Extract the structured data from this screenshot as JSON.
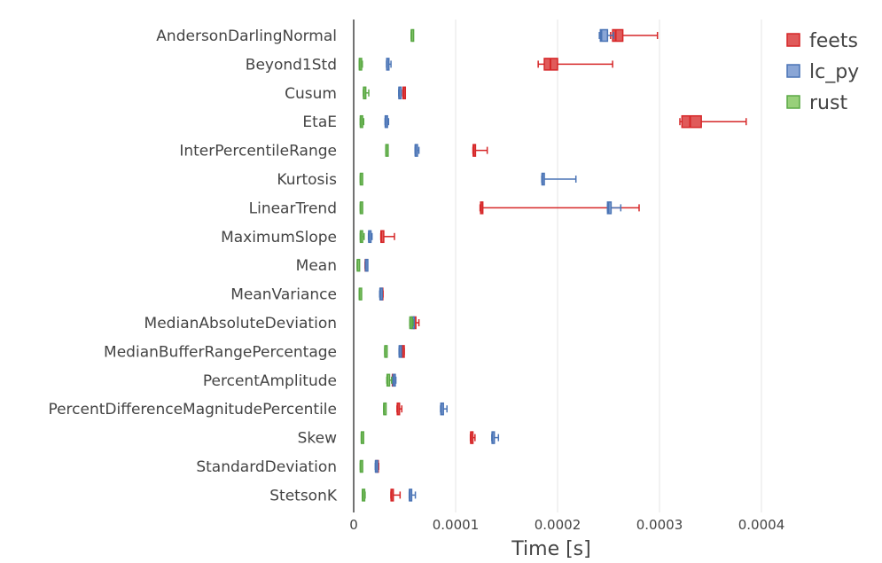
{
  "chart_data": {
    "type": "box",
    "orientation": "horizontal",
    "xlabel": "Time [s]",
    "ylabel": "",
    "xlim": [
      0,
      0.00048
    ],
    "x_ticks": [
      {
        "value": 0,
        "label": "0"
      },
      {
        "value": 0.0001,
        "label": "0.0001"
      },
      {
        "value": 0.0002,
        "label": "0.0002"
      },
      {
        "value": 0.0003,
        "label": "0.0003"
      },
      {
        "value": 0.0004,
        "label": "0.0004"
      }
    ],
    "grid": true,
    "legend_position": "top-right",
    "categories": [
      "AndersonDarlingNormal",
      "Beyond1Std",
      "Cusum",
      "EtaE",
      "InterPercentileRange",
      "Kurtosis",
      "LinearTrend",
      "MaximumSlope",
      "Mean",
      "MeanVariance",
      "MedianAbsoluteDeviation",
      "MedianBufferRangePercentage",
      "PercentAmplitude",
      "PercentDifferenceMagnitudePercentile",
      "Skew",
      "StandardDeviation",
      "StetsonK"
    ],
    "series": [
      {
        "name": "feets",
        "color": "#d62728",
        "fill": "#e05a5a",
        "boxes": [
          {
            "min": 0.000252,
            "q1": 0.000254,
            "median": 0.000257,
            "q3": 0.000264,
            "max": 0.000298
          },
          {
            "min": 0.000181,
            "q1": 0.000187,
            "median": 0.000193,
            "q3": 0.0002,
            "max": 0.000254
          },
          {
            "min": 4.82e-05,
            "q1": 4.85e-05,
            "median": 4.88e-05,
            "q3": 4.98e-05,
            "max": 5e-05
          },
          {
            "min": 0.00032,
            "q1": 0.000322,
            "median": 0.00033,
            "q3": 0.000341,
            "max": 0.000385
          },
          {
            "min": 0.000117,
            "q1": 0.0001173,
            "median": 0.0001175,
            "q3": 0.000119,
            "max": 0.000131
          },
          null,
          {
            "min": 0.000124,
            "q1": 0.0001245,
            "median": 0.0001248,
            "q3": 0.0001252,
            "max": 0.00028
          },
          {
            "min": 2.66e-05,
            "q1": 2.68e-05,
            "median": 2.7e-05,
            "q3": 2.95e-05,
            "max": 4e-05
          },
          {
            "min": 1.12e-05,
            "q1": 1.14e-05,
            "median": 1.16e-05,
            "q3": 1.22e-05,
            "max": 1.28e-05
          },
          {
            "min": 2.62e-05,
            "q1": 2.64e-05,
            "median": 2.66e-05,
            "q3": 2.8e-05,
            "max": 2.88e-05
          },
          {
            "min": 5.85e-05,
            "q1": 5.88e-05,
            "median": 5.9e-05,
            "q3": 6.05e-05,
            "max": 6.4e-05
          },
          {
            "min": 4.72e-05,
            "q1": 4.74e-05,
            "median": 4.76e-05,
            "q3": 4.86e-05,
            "max": 4.96e-05
          },
          {
            "min": 3.78e-05,
            "q1": 3.8e-05,
            "median": 3.82e-05,
            "q3": 3.9e-05,
            "max": 3.98e-05
          },
          {
            "min": 4.25e-05,
            "q1": 4.28e-05,
            "median": 4.3e-05,
            "q3": 4.48e-05,
            "max": 4.72e-05
          },
          {
            "min": 0.0001145,
            "q1": 0.0001148,
            "median": 0.000115,
            "q3": 0.000116,
            "max": 0.000119
          },
          {
            "min": 2.18e-05,
            "q1": 2.2e-05,
            "median": 2.22e-05,
            "q3": 2.32e-05,
            "max": 2.45e-05
          },
          {
            "min": 3.65e-05,
            "q1": 3.67e-05,
            "median": 3.69e-05,
            "q3": 3.74e-05,
            "max": 4.55e-05
          }
        ]
      },
      {
        "name": "lc_py",
        "color": "#4a74b5",
        "fill": "#8aa6d6",
        "boxes": [
          {
            "min": 0.000241,
            "q1": 0.000242,
            "median": 0.000243,
            "q3": 0.000249,
            "max": 0.000255
          },
          {
            "min": 3.22e-05,
            "q1": 3.24e-05,
            "median": 3.26e-05,
            "q3": 3.34e-05,
            "max": 3.66e-05
          },
          {
            "min": 4.42e-05,
            "q1": 4.44e-05,
            "median": 4.46e-05,
            "q3": 4.58e-05,
            "max": 4.65e-05
          },
          {
            "min": 3.08e-05,
            "q1": 3.1e-05,
            "median": 3.12e-05,
            "q3": 3.22e-05,
            "max": 3.42e-05
          },
          {
            "min": 6.02e-05,
            "q1": 6.04e-05,
            "median": 6.06e-05,
            "q3": 6.18e-05,
            "max": 6.4e-05
          },
          {
            "min": 0.0001845,
            "q1": 0.0001848,
            "median": 0.000185,
            "q3": 0.000187,
            "max": 0.000218
          },
          {
            "min": 0.000249,
            "q1": 0.000249,
            "median": 0.00025,
            "q3": 0.0002525,
            "max": 0.000262
          },
          {
            "min": 1.45e-05,
            "q1": 1.48e-05,
            "median": 1.5e-05,
            "q3": 1.6e-05,
            "max": 1.8e-05
          },
          {
            "min": 1.15e-05,
            "q1": 1.17e-05,
            "median": 1.19e-05,
            "q3": 1.23e-05,
            "max": 1.26e-05
          },
          {
            "min": 2.55e-05,
            "q1": 2.58e-05,
            "median": 2.6e-05,
            "q3": 2.68e-05,
            "max": 2.76e-05
          },
          {
            "min": 5.68e-05,
            "q1": 5.72e-05,
            "median": 5.75e-05,
            "q3": 5.8e-05,
            "max": 5.85e-05
          },
          {
            "min": 4.45e-05,
            "q1": 4.47e-05,
            "median": 4.49e-05,
            "q3": 4.55e-05,
            "max": 4.6e-05
          },
          {
            "min": 3.82e-05,
            "q1": 3.86e-05,
            "median": 3.9e-05,
            "q3": 4.08e-05,
            "max": 4.14e-05
          },
          {
            "min": 8.52e-05,
            "q1": 8.55e-05,
            "median": 8.58e-05,
            "q3": 8.8e-05,
            "max": 9.15e-05
          },
          {
            "min": 0.0001355,
            "q1": 0.0001358,
            "median": 0.000136,
            "q3": 0.000138,
            "max": 0.000142
          },
          {
            "min": 2.12e-05,
            "q1": 2.14e-05,
            "median": 2.16e-05,
            "q3": 2.26e-05,
            "max": 2.36e-05
          },
          {
            "min": 5.45e-05,
            "q1": 5.47e-05,
            "median": 5.49e-05,
            "q3": 5.58e-05,
            "max": 6.05e-05
          }
        ]
      },
      {
        "name": "rust",
        "color": "#5aa845",
        "fill": "#98d07a",
        "boxes": [
          {
            "min": 5.65e-05,
            "q1": 5.66e-05,
            "median": 5.67e-05,
            "q3": 5.72e-05,
            "max": 5.75e-05
          },
          {
            "min": 5.5e-06,
            "q1": 5.6e-06,
            "median": 5.8e-06,
            "q3": 6.8e-06,
            "max": 8.5e-06
          },
          {
            "min": 9.5e-06,
            "q1": 9.7e-06,
            "median": 9.9e-06,
            "q3": 1.1e-05,
            "max": 1.48e-05
          },
          {
            "min": 6.5e-06,
            "q1": 6.6e-06,
            "median": 6.8e-06,
            "q3": 7.6e-06,
            "max": 9.8e-06
          },
          {
            "min": 3.15e-05,
            "q1": 3.16e-05,
            "median": 3.18e-05,
            "q3": 3.26e-05,
            "max": 3.35e-05
          },
          {
            "min": 6.5e-06,
            "q1": 6.6e-06,
            "median": 6.7e-06,
            "q3": 7.3e-06,
            "max": 8e-06
          },
          {
            "min": 6.5e-06,
            "q1": 6.6e-06,
            "median": 6.7e-06,
            "q3": 7.4e-06,
            "max": 8.2e-06
          },
          {
            "min": 6.5e-06,
            "q1": 6.6e-06,
            "median": 6.8e-06,
            "q3": 7.8e-06,
            "max": 1.02e-05
          },
          {
            "min": 3.5e-06,
            "q1": 3.6e-06,
            "median": 3.7e-06,
            "q3": 4.2e-06,
            "max": 4.5e-06
          },
          {
            "min": 5.5e-06,
            "q1": 5.6e-06,
            "median": 5.7e-06,
            "q3": 6.3e-06,
            "max": 6.8e-06
          },
          {
            "min": 5.5e-05,
            "q1": 5.52e-05,
            "median": 5.54e-05,
            "q3": 5.72e-05,
            "max": 5.82e-05
          },
          {
            "min": 3.05e-05,
            "q1": 3.06e-05,
            "median": 3.07e-05,
            "q3": 3.15e-05,
            "max": 3.25e-05
          },
          {
            "min": 3.25e-05,
            "q1": 3.28e-05,
            "median": 3.3e-05,
            "q3": 3.52e-05,
            "max": 3.72e-05
          },
          {
            "min": 2.95e-05,
            "q1": 2.96e-05,
            "median": 2.97e-05,
            "q3": 3.03e-05,
            "max": 3.08e-05
          },
          {
            "min": 7.5e-06,
            "q1": 7.6e-06,
            "median": 7.7e-06,
            "q3": 8.2e-06,
            "max": 8.6e-06
          },
          {
            "min": 6.5e-06,
            "q1": 6.6e-06,
            "median": 6.7e-06,
            "q3": 7.2e-06,
            "max": 7.5e-06
          },
          {
            "min": 8.5e-06,
            "q1": 8.6e-06,
            "median": 8.8e-06,
            "q3": 9.8e-06,
            "max": 1.12e-05
          }
        ]
      }
    ]
  }
}
